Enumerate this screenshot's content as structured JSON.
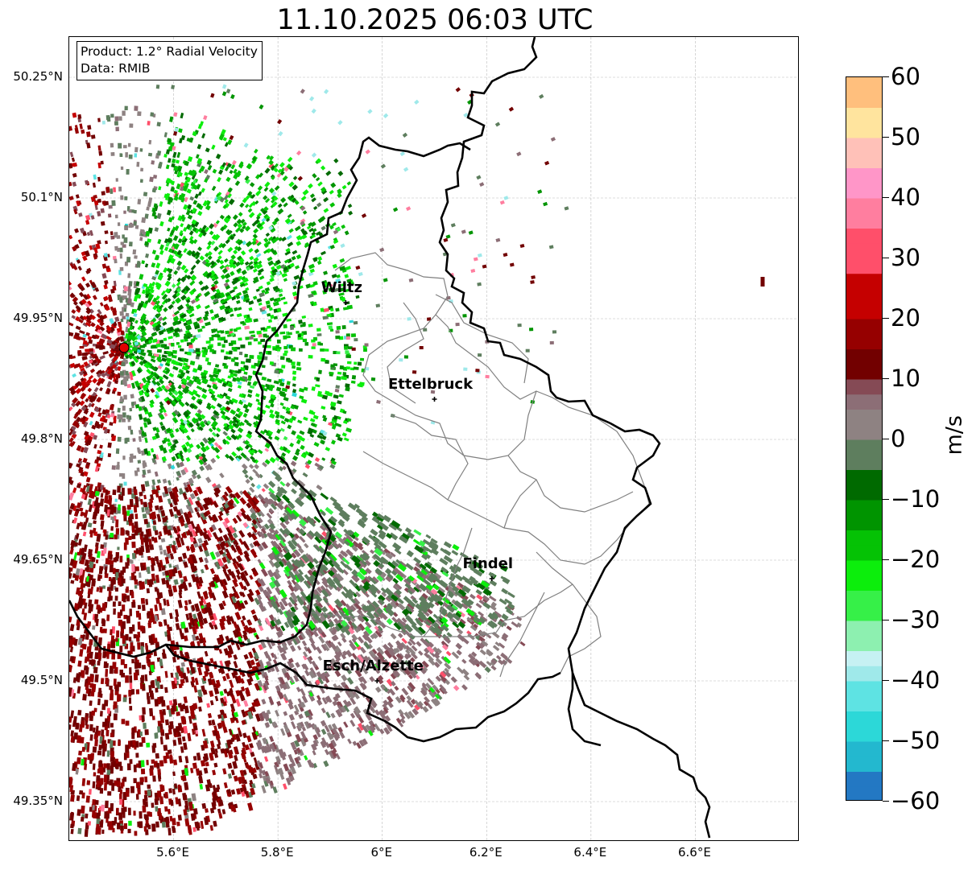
{
  "title": "11.10.2025 06:03 UTC",
  "info_box": {
    "product": "Product: 1.2° Radial Velocity",
    "data": "Data: RMIB"
  },
  "map": {
    "lat_ticks": [
      "50.25°N",
      "50.1°N",
      "49.95°N",
      "49.8°N",
      "49.65°N",
      "49.5°N",
      "49.35°N"
    ],
    "lon_ticks": [
      "5.6°E",
      "5.8°E",
      "6°E",
      "6.2°E",
      "6.4°E",
      "6.6°E"
    ],
    "extent": {
      "lon_min": 5.4,
      "lon_max": 6.8,
      "lat_min": 49.3,
      "lat_max": 50.3
    },
    "cities": [
      {
        "name": "Wiltz",
        "lon": 5.93,
        "lat": 49.97
      },
      {
        "name": "Ettelbruck",
        "lon": 6.1,
        "lat": 49.85
      },
      {
        "name": "Findel",
        "lon": 6.21,
        "lat": 49.627
      },
      {
        "name": "Esch/Alzette",
        "lon": 5.99,
        "lat": 49.5
      }
    ],
    "radar_site": {
      "lon": 5.505,
      "lat": 49.914
    },
    "grid": true,
    "colors": {
      "border": "#000000",
      "canton_lines": "#808080",
      "grid": "#bbbbbb",
      "radar_marker": "#e00000"
    }
  },
  "colorbar": {
    "label": "m/s",
    "ticks": [
      "60",
      "50",
      "40",
      "30",
      "20",
      "10",
      "0",
      "−10",
      "−20",
      "−30",
      "−40",
      "−50",
      "−60"
    ],
    "range": [
      -60,
      60
    ],
    "stops": [
      {
        "v": -60,
        "c": "#2378c3"
      },
      {
        "v": -55,
        "c": "#23b8cf"
      },
      {
        "v": -50,
        "c": "#2cd8d8"
      },
      {
        "v": -45,
        "c": "#5ee3e3"
      },
      {
        "v": -40,
        "c": "#9fe9ea"
      },
      {
        "v": -37,
        "c": "#c6f1f3"
      },
      {
        "v": -35,
        "c": "#8df0b0"
      },
      {
        "v": -30,
        "c": "#36f048"
      },
      {
        "v": -25,
        "c": "#0cee0c"
      },
      {
        "v": -20,
        "c": "#05c205"
      },
      {
        "v": -15,
        "c": "#009400"
      },
      {
        "v": -10,
        "c": "#006a00"
      },
      {
        "v": -6,
        "c": "#5e7e5e"
      },
      {
        "v": 0,
        "c": "#8e8282"
      },
      {
        "v": 5,
        "c": "#8c6e76"
      },
      {
        "v": 8,
        "c": "#854a55"
      },
      {
        "v": 10,
        "c": "#720000"
      },
      {
        "v": 15,
        "c": "#960000"
      },
      {
        "v": 20,
        "c": "#c50000"
      },
      {
        "v": 27,
        "c": "#f40505"
      },
      {
        "v": 28,
        "c": "#ff4f6a"
      },
      {
        "v": 35,
        "c": "#ff7e9f"
      },
      {
        "v": 40,
        "c": "#ff96c8"
      },
      {
        "v": 45,
        "c": "#ffc1b8"
      },
      {
        "v": 50,
        "c": "#ffe49e"
      },
      {
        "v": 55,
        "c": "#ffbf7d"
      },
      {
        "v": 60,
        "c": "#ffa055"
      }
    ]
  }
}
